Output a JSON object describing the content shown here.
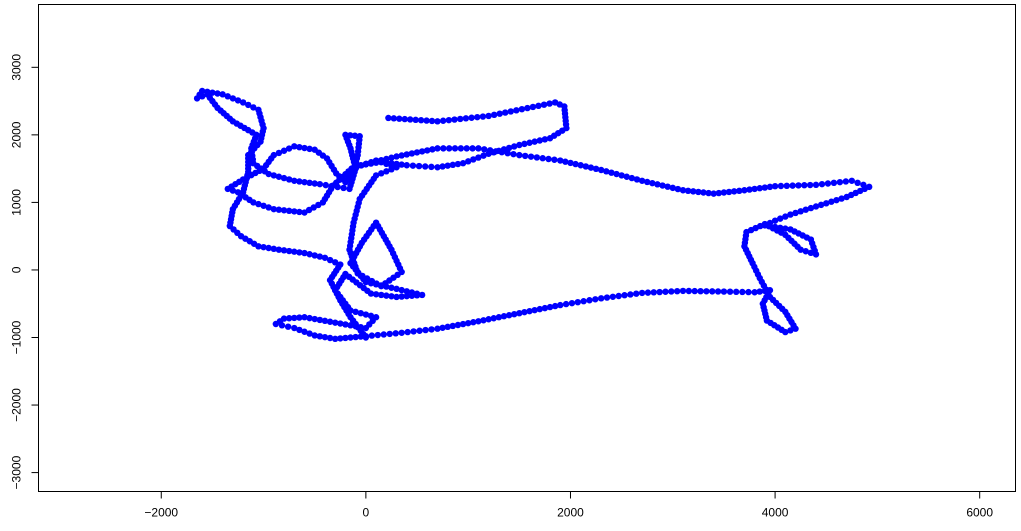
{
  "chart_data": {
    "type": "scatter",
    "title": "",
    "xlabel": "",
    "ylabel": "",
    "xlim": [
      -3200,
      6350
    ],
    "ylim": [
      -3280,
      3930
    ],
    "grid": false,
    "legend": "none",
    "xticks": [
      -2000,
      0,
      2000,
      4000,
      6000
    ],
    "yticks": [
      -3000,
      -2000,
      -1000,
      0,
      1000,
      2000,
      3000
    ],
    "xtick_labels": [
      "−2000",
      "0",
      "2000",
      "4000",
      "6000"
    ],
    "ytick_labels": [
      "−3000",
      "−2000",
      "−1000",
      "0",
      "1000",
      "2000",
      "3000"
    ],
    "series": [
      {
        "color": "#0000ff",
        "path": [
          [
            220,
            2250
          ],
          [
            700,
            2200
          ],
          [
            1200,
            2280
          ],
          [
            1850,
            2480
          ],
          [
            1940,
            2420
          ],
          [
            1960,
            2100
          ],
          [
            1800,
            1950
          ],
          [
            1500,
            1850
          ],
          [
            1200,
            1720
          ],
          [
            950,
            1580
          ],
          [
            700,
            1520
          ],
          [
            400,
            1550
          ],
          [
            150,
            1600
          ],
          [
            -50,
            1550
          ],
          [
            300,
            1680
          ],
          [
            700,
            1800
          ],
          [
            1100,
            1800
          ],
          [
            1500,
            1700
          ],
          [
            1900,
            1620
          ],
          [
            2300,
            1480
          ],
          [
            2700,
            1320
          ],
          [
            3100,
            1180
          ],
          [
            3400,
            1130
          ],
          [
            3700,
            1180
          ],
          [
            4000,
            1240
          ],
          [
            4400,
            1260
          ],
          [
            4750,
            1320
          ],
          [
            4920,
            1230
          ],
          [
            4700,
            1080
          ],
          [
            4400,
            940
          ],
          [
            4150,
            820
          ],
          [
            4000,
            730
          ],
          [
            3900,
            660
          ],
          [
            4150,
            600
          ],
          [
            4350,
            450
          ],
          [
            4400,
            230
          ],
          [
            4250,
            300
          ],
          [
            4100,
            520
          ],
          [
            3900,
            680
          ],
          [
            3720,
            560
          ],
          [
            3700,
            350
          ],
          [
            3780,
            100
          ],
          [
            3850,
            -120
          ],
          [
            3950,
            -400
          ],
          [
            4100,
            -620
          ],
          [
            4200,
            -870
          ],
          [
            4100,
            -920
          ],
          [
            3920,
            -750
          ],
          [
            3880,
            -500
          ],
          [
            3950,
            -300
          ],
          [
            3800,
            -330
          ],
          [
            3500,
            -320
          ],
          [
            3100,
            -310
          ],
          [
            2700,
            -340
          ],
          [
            2300,
            -420
          ],
          [
            1900,
            -520
          ],
          [
            1500,
            -640
          ],
          [
            1100,
            -760
          ],
          [
            700,
            -870
          ],
          [
            350,
            -930
          ],
          [
            0,
            -980
          ],
          [
            -300,
            -1020
          ],
          [
            -500,
            -970
          ],
          [
            -700,
            -860
          ],
          [
            -880,
            -800
          ],
          [
            -800,
            -720
          ],
          [
            -600,
            -700
          ],
          [
            -300,
            -780
          ],
          [
            0,
            -860
          ],
          [
            100,
            -700
          ],
          [
            -150,
            -600
          ],
          [
            -300,
            -300
          ],
          [
            -200,
            -60
          ],
          [
            50,
            -350
          ],
          [
            300,
            -400
          ],
          [
            550,
            -370
          ],
          [
            300,
            -280
          ],
          [
            0,
            -180
          ],
          [
            -150,
            100
          ],
          [
            -40,
            400
          ],
          [
            100,
            700
          ],
          [
            250,
            300
          ],
          [
            350,
            -30
          ],
          [
            150,
            -240
          ],
          [
            -80,
            -50
          ],
          [
            -160,
            300
          ],
          [
            -120,
            700
          ],
          [
            -60,
            1050
          ],
          [
            100,
            1400
          ],
          [
            300,
            1520
          ],
          [
            100,
            1620
          ],
          [
            -140,
            1500
          ],
          [
            -320,
            1250
          ],
          [
            -420,
            1000
          ],
          [
            -600,
            850
          ],
          [
            -900,
            900
          ],
          [
            -1100,
            1000
          ],
          [
            -1250,
            1150
          ],
          [
            -1350,
            1200
          ],
          [
            -1200,
            1340
          ],
          [
            -1000,
            1500
          ],
          [
            -900,
            1700
          ],
          [
            -700,
            1830
          ],
          [
            -500,
            1780
          ],
          [
            -380,
            1650
          ],
          [
            -290,
            1430
          ],
          [
            -200,
            1300
          ],
          [
            -120,
            1450
          ],
          [
            -80,
            1700
          ],
          [
            -60,
            1980
          ],
          [
            -200,
            2000
          ],
          [
            -150,
            1800
          ],
          [
            -100,
            1500
          ],
          [
            -160,
            1200
          ],
          [
            -450,
            1270
          ],
          [
            -700,
            1320
          ],
          [
            -950,
            1420
          ],
          [
            -1100,
            1580
          ],
          [
            -1120,
            1800
          ],
          [
            -1070,
            2000
          ],
          [
            -1150,
            2070
          ],
          [
            -1300,
            2200
          ],
          [
            -1450,
            2400
          ],
          [
            -1550,
            2600
          ],
          [
            -1650,
            2540
          ],
          [
            -1600,
            2650
          ],
          [
            -1400,
            2600
          ],
          [
            -1200,
            2480
          ],
          [
            -1050,
            2370
          ],
          [
            -1000,
            2100
          ],
          [
            -1030,
            1900
          ],
          [
            -1150,
            1700
          ],
          [
            -1150,
            1450
          ],
          [
            -1200,
            1150
          ],
          [
            -1300,
            900
          ],
          [
            -1330,
            650
          ],
          [
            -1220,
            500
          ],
          [
            -1050,
            350
          ],
          [
            -850,
            300
          ],
          [
            -600,
            250
          ],
          [
            -400,
            180
          ],
          [
            -250,
            80
          ],
          [
            -350,
            -150
          ],
          [
            -250,
            -450
          ],
          [
            -150,
            -700
          ],
          [
            -50,
            -900
          ],
          [
            0,
            -1000
          ]
        ]
      }
    ]
  }
}
